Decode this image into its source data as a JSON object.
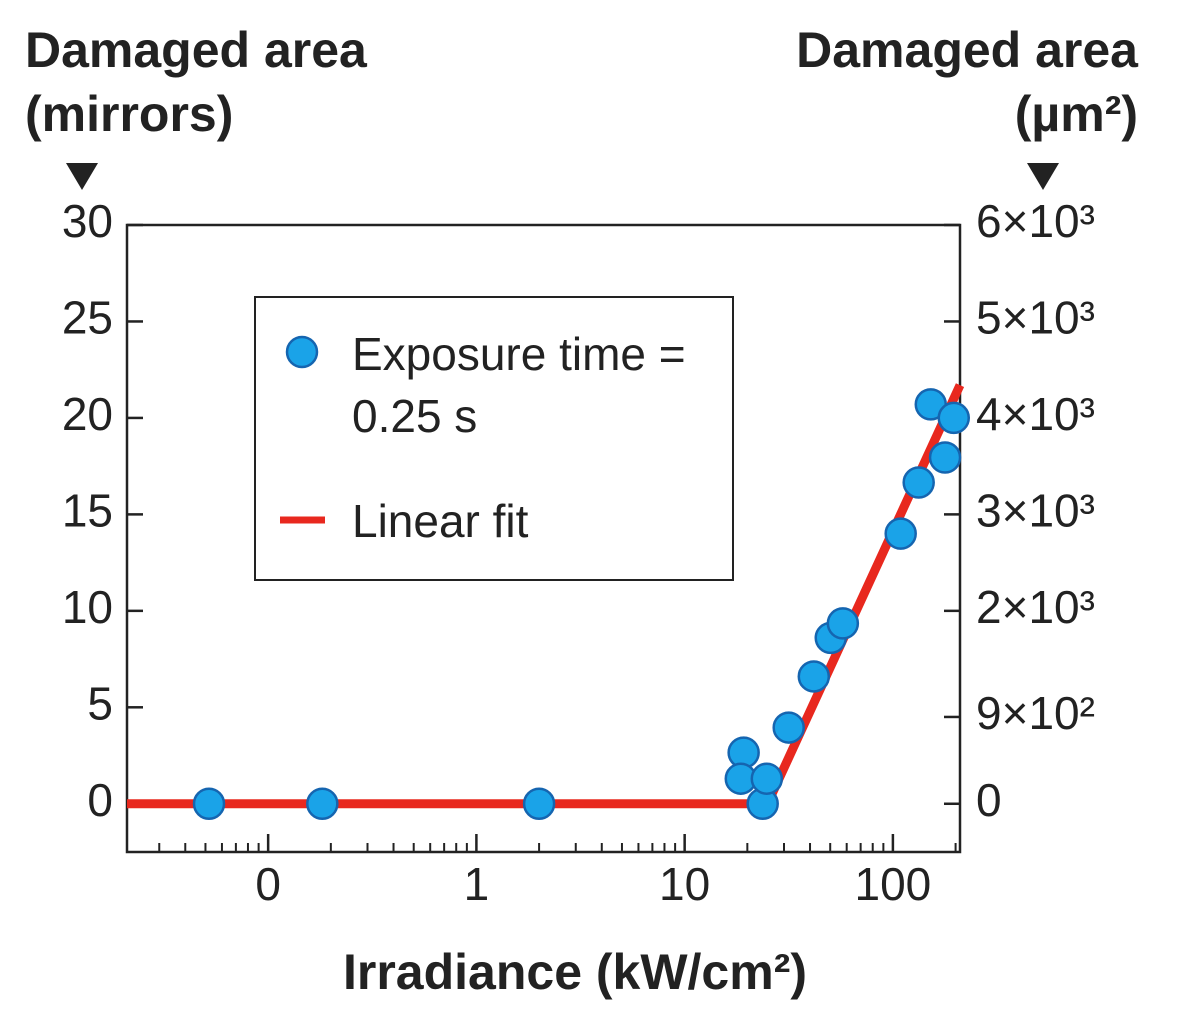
{
  "chart_data": {
    "type": "scatter",
    "y_label_left": "Damaged area (mirrors)",
    "y_label_right": "Damaged area (µm²)",
    "x_label": "Irradiance (kW/cm²)",
    "x_scale": "log",
    "xlim": [
      0.021,
      210
    ],
    "xticks": [
      {
        "value": 0.1,
        "label": "0"
      },
      1,
      10,
      100
    ],
    "ylim": [
      -2.5,
      30
    ],
    "yticks": [
      0,
      5,
      10,
      15,
      20,
      25,
      30
    ],
    "y2lim": [
      -500,
      6000
    ],
    "y2ticks": [
      0,
      {
        "value": 900,
        "label": "9×10²"
      },
      {
        "value": 2000,
        "label": "2×10³"
      },
      {
        "value": 3000,
        "label": "3×10³"
      },
      {
        "value": 4000,
        "label": "4×10³"
      },
      {
        "value": 5000,
        "label": "5×10³"
      },
      {
        "value": 6000,
        "label": "6×10³"
      }
    ],
    "legend": "upper left",
    "series": [
      {
        "name": "Exposure time = 0.25 s",
        "type": "scatter",
        "color": "#1aa3e8",
        "x": [
          0.052,
          0.182,
          2,
          19.2,
          18.6,
          23.7,
          24.8,
          31.6,
          41.7,
          50.3,
          57.5,
          109,
          133,
          152,
          178,
          196
        ],
        "values": [
          0,
          0,
          0,
          2.65,
          1.3,
          0,
          1.3,
          3.95,
          6.6,
          8.6,
          9.35,
          14,
          16.65,
          20.7,
          17.95,
          20
        ]
      },
      {
        "name": "Linear fit",
        "type": "line",
        "color": "#e8281e",
        "x": [
          0.021,
          25,
          210
        ],
        "values": [
          0,
          0,
          21.7
        ]
      }
    ]
  }
}
